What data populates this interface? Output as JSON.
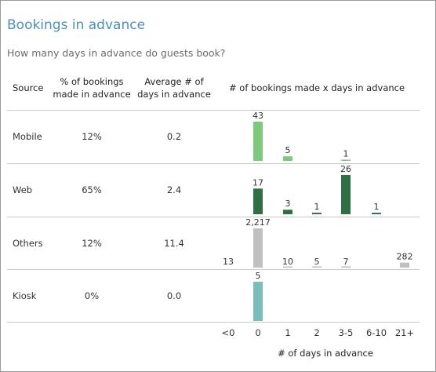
{
  "title": "Bookings in advance",
  "subtitle": "How many days in advance do guests book?",
  "columns": {
    "source": "Source",
    "pct": [
      "% of bookings",
      "made in advance"
    ],
    "avg": [
      "Average # of",
      "days in advance"
    ],
    "chart": "# of bookings made x days in advance"
  },
  "rows": [
    {
      "source": "Mobile",
      "pct": "12%",
      "avg": "0.2"
    },
    {
      "source": "Web",
      "pct": "65%",
      "avg": "2.4"
    },
    {
      "source": "Others",
      "pct": "12%",
      "avg": "11.4"
    },
    {
      "source": "Kiosk",
      "pct": "0%",
      "avg": "0.0"
    }
  ],
  "chart_data": {
    "type": "bar",
    "categories": [
      "<0",
      "0",
      "1",
      "2",
      "3-5",
      "6-10",
      "21+"
    ],
    "xlabel": "# of days in advance",
    "series": [
      {
        "source": "Mobile",
        "color": "#7fc97f",
        "values": [
          null,
          43,
          5,
          null,
          1,
          null,
          null
        ],
        "labels": [
          "",
          "43",
          "5",
          "",
          "1",
          "",
          ""
        ]
      },
      {
        "source": "Web",
        "color": "#2f6f43",
        "values": [
          null,
          17,
          3,
          1,
          26,
          1,
          null
        ],
        "labels": [
          "",
          "17",
          "3",
          "1",
          "26",
          "1",
          ""
        ]
      },
      {
        "source": "Others",
        "color": "#c0c0c0",
        "values": [
          13,
          2217,
          10,
          5,
          7,
          null,
          282
        ],
        "labels": [
          "13",
          "2,217",
          "10",
          "5",
          "7",
          "",
          "282"
        ]
      },
      {
        "source": "Kiosk",
        "color": "#7bbdb8",
        "values": [
          null,
          5,
          null,
          null,
          null,
          null,
          null
        ],
        "labels": [
          "",
          "5",
          "",
          "",
          "",
          "",
          ""
        ]
      }
    ]
  }
}
